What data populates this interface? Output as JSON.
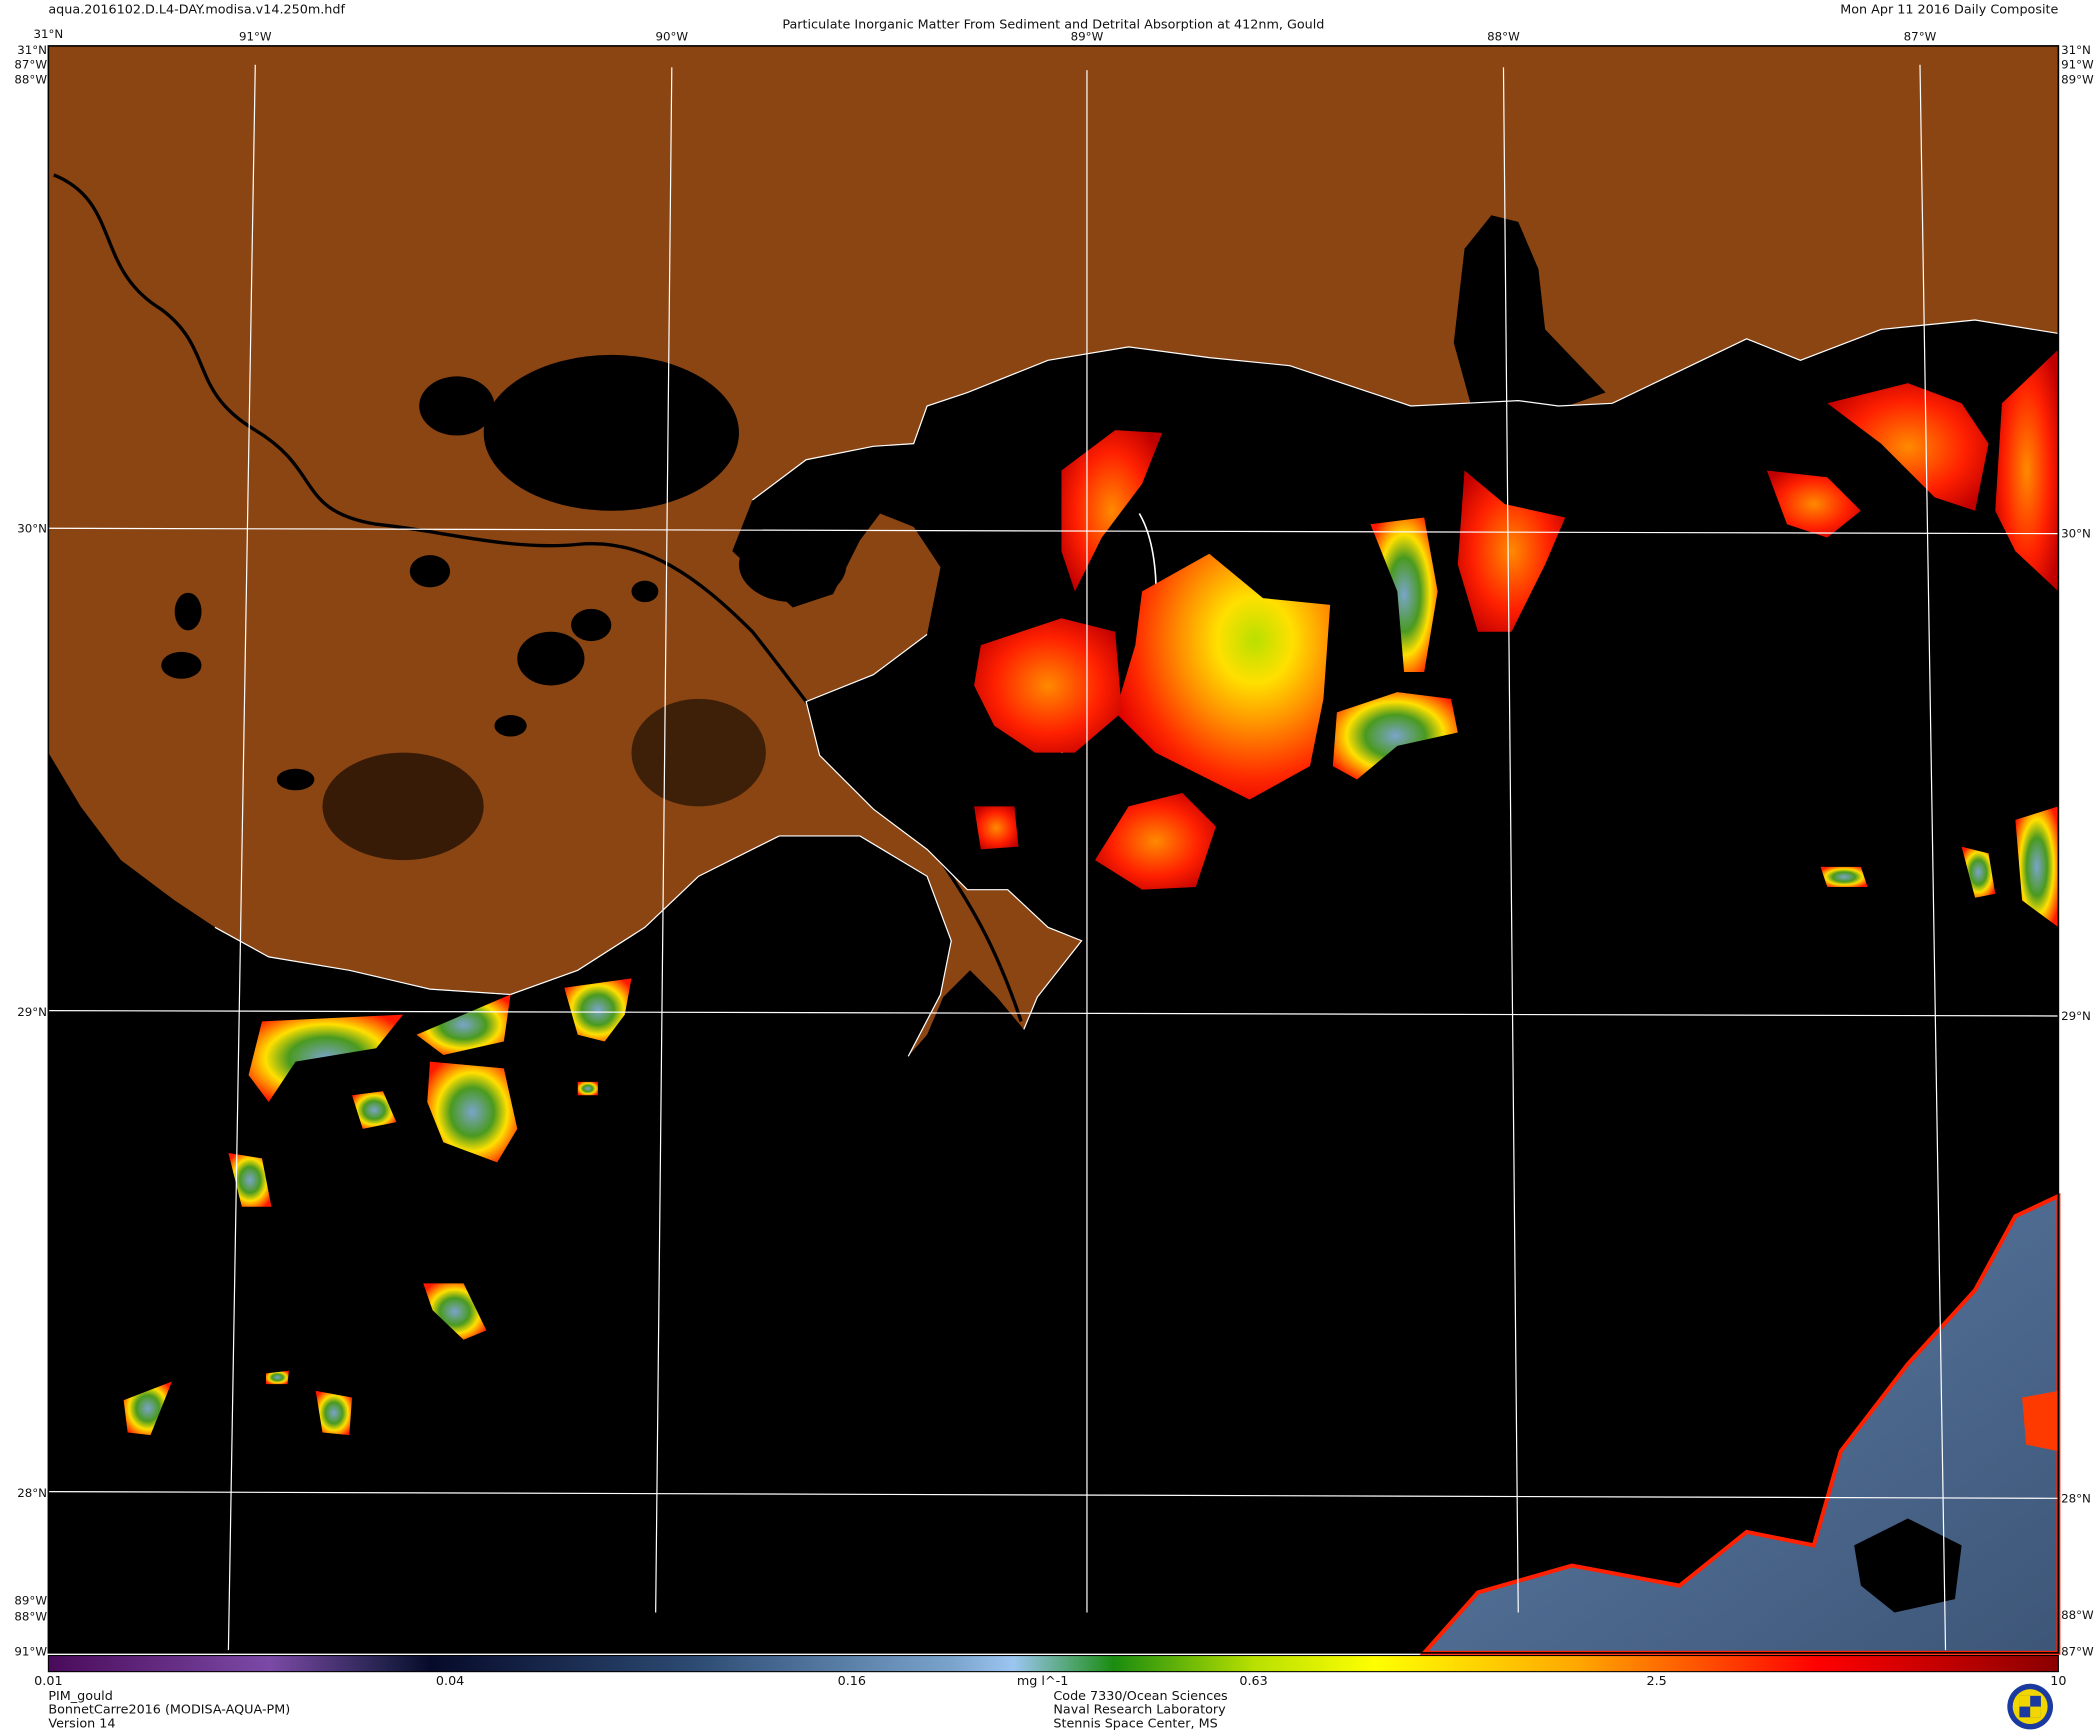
{
  "header": {
    "filename": "aqua.2016102.D.L4-DAY.modisa.v14.250m.hdf",
    "title": "Particulate Inorganic Matter From Sediment and Detrital Absorption at 412nm, Gould",
    "date": "Mon Apr 11 2016 Daily Composite"
  },
  "map": {
    "top_lon_labels": [
      "91°W",
      "90°W",
      "89°W",
      "88°W",
      "87°W"
    ],
    "lat_labels": [
      "30°N",
      "29°N",
      "28°N"
    ],
    "corner_labels": {
      "top_left_above": "31°N",
      "top_left": "31°N",
      "left_top_a": "87°W",
      "left_top_b": "88°W",
      "top_right": "31°N",
      "right_top_a": "91°W",
      "right_top_b": "89°W",
      "bottom_left_a": "89°W",
      "bottom_left_b": "88°W",
      "bottom_left": "91°W",
      "bottom_right_a": "88°W",
      "bottom_right": "87°W"
    },
    "colors": {
      "land": "#8b4513",
      "water": "#000000",
      "coastline": "#ffffff",
      "grid": "#ffffff"
    }
  },
  "colorbar": {
    "tick_labels": [
      "0.01",
      "0.04",
      "0.16",
      "0.63",
      "2.5",
      "10"
    ],
    "units": "mg l^-1",
    "range": [
      0.01,
      10
    ],
    "scale": "log"
  },
  "footer": {
    "left": [
      "PIM_gould",
      "BonnetCarre2016 (MODISA-AQUA-PM)",
      "Version 14"
    ],
    "center": [
      "Code 7330/Ocean Sciences",
      "Naval Research Laboratory",
      "Stennis Space Center, MS"
    ],
    "logo_icon": "navy-research-lab-seal-icon"
  }
}
